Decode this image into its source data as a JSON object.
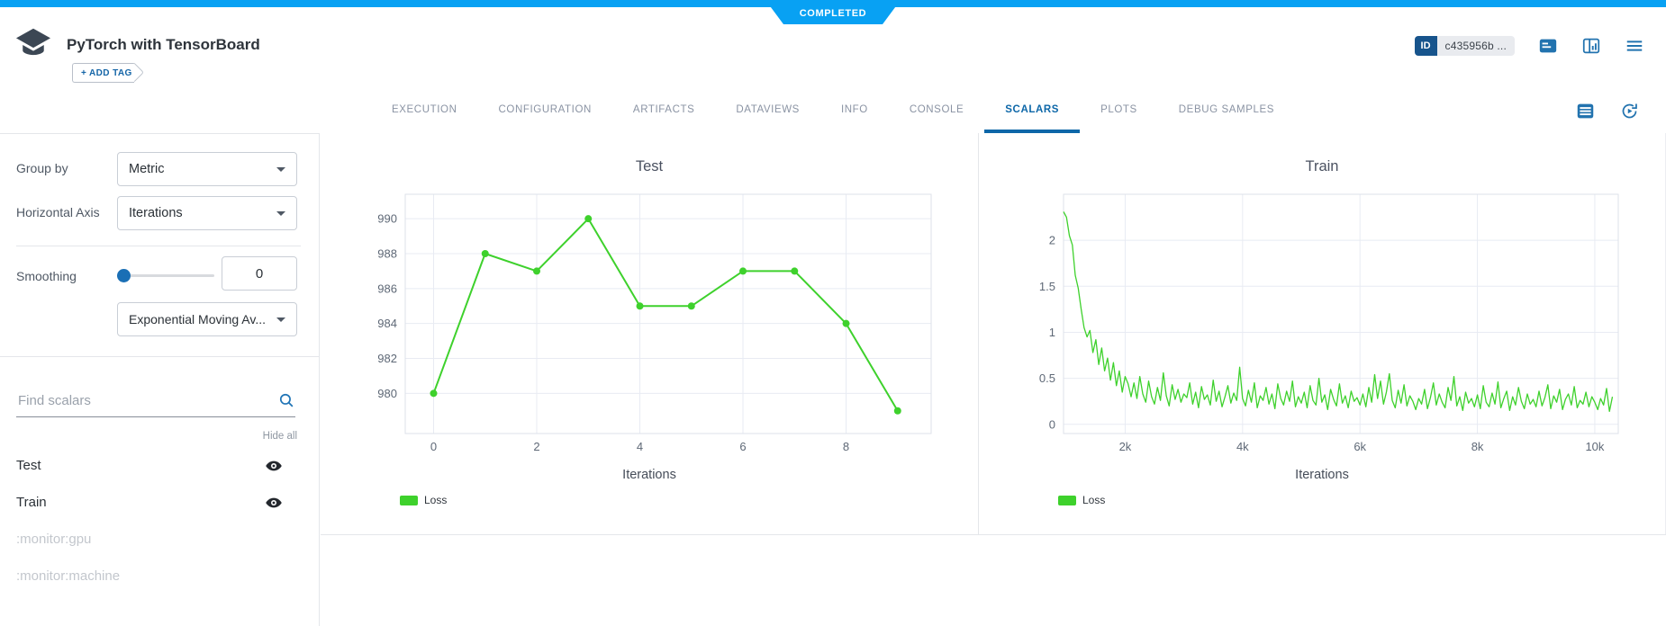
{
  "status": {
    "label": "COMPLETED"
  },
  "colors": {
    "banner_blue": "#08a1f3",
    "accent_blue": "#1465a7",
    "active_tab_blue": "#0d67a8",
    "icon_blue": "#2273af",
    "id_badge_blue": "#17548c",
    "series_green": "#3ed12c",
    "grid_gray": "#e8ebf3",
    "muted_gray": "#c3c7cd"
  },
  "header": {
    "title": "PyTorch with TensorBoard",
    "add_tag": "+ ADD TAG",
    "id_label": "ID",
    "task_id": "c435956b ...",
    "icons": [
      "notes-icon",
      "columns-layout-icon",
      "menu-icon"
    ],
    "logo_icon": "graduation-cap-icon"
  },
  "tabs": {
    "items": [
      "EXECUTION",
      "CONFIGURATION",
      "ARTIFACTS",
      "DATAVIEWS",
      "INFO",
      "CONSOLE",
      "SCALARS",
      "PLOTS",
      "DEBUG SAMPLES"
    ],
    "active": "SCALARS",
    "icons": [
      "table-view-icon",
      "auto-refresh-icon"
    ]
  },
  "sidebar": {
    "group_by": {
      "label": "Group by",
      "value": "Metric"
    },
    "horizontal_axis": {
      "label": "Horizontal Axis",
      "value": "Iterations"
    },
    "smoothing": {
      "label": "Smoothing",
      "value": "0",
      "slider_value": 0,
      "algorithm": "Exponential Moving Av..."
    },
    "search": {
      "placeholder": "Find scalars",
      "icon": "search-icon"
    },
    "hide_all": "Hide all",
    "metrics": [
      {
        "label": "Test",
        "visible": true,
        "muted": false
      },
      {
        "label": "Train",
        "visible": true,
        "muted": false
      },
      {
        "label": ":monitor:gpu",
        "visible": false,
        "muted": true
      },
      {
        "label": ":monitor:machine",
        "visible": false,
        "muted": true
      }
    ]
  },
  "chart_data": [
    {
      "type": "line",
      "title": "Test",
      "xlabel": "Iterations",
      "grid": true,
      "legend_position": "bottom-left",
      "x_range": [
        -0.55,
        9.65
      ],
      "y_range": [
        977.7,
        991.4
      ],
      "x_ticks": [
        {
          "v": 0,
          "label": "0"
        },
        {
          "v": 2,
          "label": "2"
        },
        {
          "v": 4,
          "label": "4"
        },
        {
          "v": 6,
          "label": "6"
        },
        {
          "v": 8,
          "label": "8"
        }
      ],
      "y_ticks": [
        {
          "v": 980,
          "label": "980"
        },
        {
          "v": 982,
          "label": "982"
        },
        {
          "v": 984,
          "label": "984"
        },
        {
          "v": 986,
          "label": "986"
        },
        {
          "v": 988,
          "label": "988"
        },
        {
          "v": 990,
          "label": "990"
        }
      ],
      "series": [
        {
          "name": "Loss",
          "color": "#3ed12c",
          "markers": true,
          "line_width": 2,
          "x": [
            0,
            1,
            2,
            3,
            4,
            5,
            6,
            7,
            8,
            9
          ],
          "y": [
            980,
            988,
            987,
            990,
            985,
            985,
            987,
            987,
            984,
            979
          ]
        }
      ]
    },
    {
      "type": "line",
      "title": "Train",
      "xlabel": "Iterations",
      "grid": true,
      "legend_position": "bottom-left",
      "x_range": [
        950,
        10400
      ],
      "y_range": [
        -0.1,
        2.5
      ],
      "x_ticks": [
        {
          "v": 2000,
          "label": "2k"
        },
        {
          "v": 4000,
          "label": "4k"
        },
        {
          "v": 6000,
          "label": "6k"
        },
        {
          "v": 8000,
          "label": "8k"
        },
        {
          "v": 10000,
          "label": "10k"
        }
      ],
      "y_ticks": [
        {
          "v": 0,
          "label": "0"
        },
        {
          "v": 0.5,
          "label": "0.5"
        },
        {
          "v": 1,
          "label": "1"
        },
        {
          "v": 1.5,
          "label": "1.5"
        },
        {
          "v": 2,
          "label": "2"
        }
      ],
      "series": [
        {
          "name": "Loss",
          "color": "#3ed12c",
          "markers": false,
          "line_width": 1.3,
          "x_start": 950,
          "x_step": 50,
          "y": [
            2.31,
            2.25,
            2.05,
            1.95,
            1.62,
            1.48,
            1.25,
            1.05,
            0.95,
            1.02,
            0.78,
            0.92,
            0.65,
            0.83,
            0.58,
            0.72,
            0.48,
            0.67,
            0.42,
            0.58,
            0.35,
            0.52,
            0.44,
            0.3,
            0.45,
            0.28,
            0.52,
            0.33,
            0.24,
            0.47,
            0.3,
            0.22,
            0.4,
            0.26,
            0.56,
            0.31,
            0.2,
            0.43,
            0.27,
            0.38,
            0.24,
            0.33,
            0.29,
            0.45,
            0.22,
            0.35,
            0.18,
            0.41,
            0.27,
            0.32,
            0.21,
            0.48,
            0.25,
            0.36,
            0.19,
            0.3,
            0.42,
            0.23,
            0.34,
            0.26,
            0.62,
            0.28,
            0.2,
            0.37,
            0.24,
            0.45,
            0.18,
            0.31,
            0.26,
            0.4,
            0.22,
            0.33,
            0.17,
            0.44,
            0.28,
            0.21,
            0.36,
            0.25,
            0.47,
            0.19,
            0.3,
            0.23,
            0.35,
            0.18,
            0.42,
            0.26,
            0.21,
            0.5,
            0.24,
            0.32,
            0.16,
            0.38,
            0.27,
            0.2,
            0.44,
            0.23,
            0.31,
            0.18,
            0.36,
            0.25,
            0.29,
            0.21,
            0.33,
            0.19,
            0.4,
            0.24,
            0.54,
            0.28,
            0.47,
            0.22,
            0.35,
            0.55,
            0.26,
            0.18,
            0.37,
            0.23,
            0.43,
            0.2,
            0.31,
            0.25,
            0.16,
            0.28,
            0.22,
            0.38,
            0.17,
            0.29,
            0.45,
            0.21,
            0.33,
            0.24,
            0.18,
            0.4,
            0.26,
            0.52,
            0.2,
            0.3,
            0.15,
            0.35,
            0.23,
            0.28,
            0.19,
            0.32,
            0.17,
            0.42,
            0.24,
            0.19,
            0.34,
            0.22,
            0.46,
            0.18,
            0.28,
            0.36,
            0.15,
            0.3,
            0.21,
            0.4,
            0.25,
            0.17,
            0.33,
            0.22,
            0.27,
            0.19,
            0.36,
            0.2,
            0.29,
            0.43,
            0.17,
            0.31,
            0.24,
            0.38,
            0.16,
            0.27,
            0.33,
            0.21,
            0.41,
            0.18,
            0.26,
            0.22,
            0.35,
            0.19,
            0.3,
            0.24,
            0.16,
            0.28,
            0.21,
            0.39,
            0.14,
            0.3
          ]
        }
      ]
    }
  ]
}
